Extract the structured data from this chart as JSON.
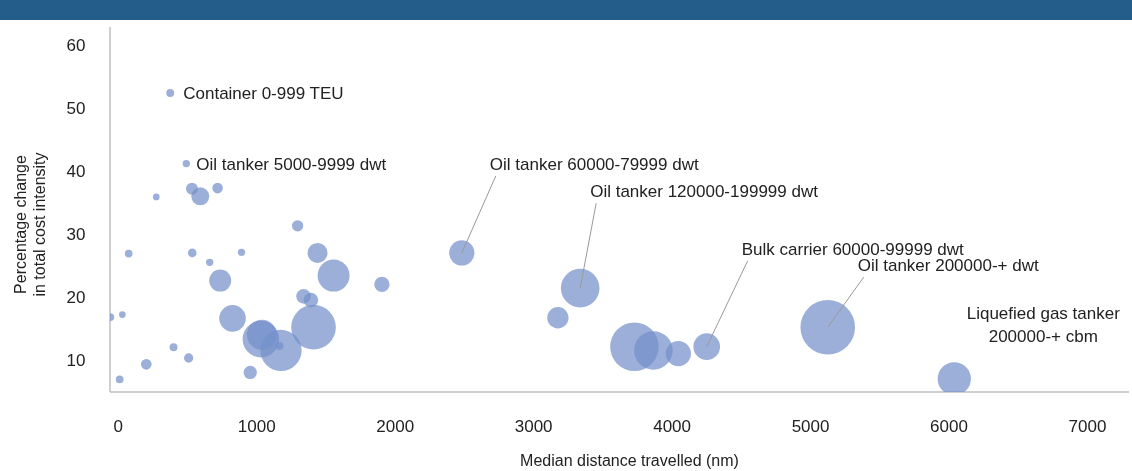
{
  "chart_data": {
    "type": "bubble",
    "xlabel": "Median distance travelled (nm)",
    "ylabel": "Percentage change\nin total cost intensity",
    "xlim": [
      -60,
      7300
    ],
    "xticks": [
      0,
      1000,
      2000,
      3000,
      4000,
      5000,
      6000,
      7000
    ],
    "ylim": [
      5,
      63
    ],
    "yticks": [
      10,
      20,
      30,
      40,
      50,
      60
    ],
    "grid": false,
    "marker": "circle",
    "series": [
      {
        "color": "#7590cb",
        "x": [
          375,
          491,
          274,
          532,
          592,
          717,
          1295,
          75,
          534,
          890,
          660,
          1439,
          736,
          1555,
          1904,
          1338,
          1391,
          -58,
          29,
          825,
          1410,
          1030,
          1037,
          1175,
          1165,
          399,
          508,
          202,
          10,
          953,
          2481,
          3336,
          3175,
          3728,
          3865,
          4045,
          4250,
          5124,
          6038
        ],
        "values": [
          52.5,
          41.3,
          36.0,
          37.3,
          36.1,
          37.4,
          31.4,
          27.0,
          27.1,
          27.2,
          25.6,
          27.1,
          22.7,
          23.5,
          22.1,
          20.2,
          19.6,
          16.9,
          17.3,
          16.7,
          15.3,
          13.4,
          14.1,
          11.6,
          12.3,
          12.1,
          10.4,
          9.4,
          7.0,
          8.1,
          27.1,
          21.5,
          16.8,
          12.2,
          11.6,
          11.1,
          12.2,
          15.3,
          7.1
        ],
        "sizes": [
          0.021,
          0.018,
          0.015,
          0.048,
          0.108,
          0.038,
          0.043,
          0.02,
          0.025,
          0.018,
          0.018,
          0.134,
          0.162,
          0.343,
          0.079,
          0.072,
          0.072,
          0.021,
          0.015,
          0.238,
          0.668,
          0.45,
          0.301,
          0.572,
          0.021,
          0.021,
          0.029,
          0.038,
          0.02,
          0.059,
          0.215,
          0.5,
          0.152,
          0.793,
          0.5,
          0.215,
          0.238,
          1,
          0.372
        ]
      }
    ],
    "annotations": [
      {
        "text": "Container 0-999 TEU",
        "x": 375,
        "y": 52.5
      },
      {
        "text": "Oil tanker 5000-9999 dwt",
        "x": 491,
        "y": 41.3
      },
      {
        "text": "Oil tanker 60000-79999 dwt",
        "x": 2481,
        "y": 27.1
      },
      {
        "text": "Oil tanker 120000-199999 dwt",
        "x": 3336,
        "y": 21.5
      },
      {
        "text": "Bulk carrier 60000-99999 dwt",
        "x": 4250,
        "y": 12.2
      },
      {
        "text": "Oil tanker 200000-+ dwt",
        "x": 5124,
        "y": 15.3
      },
      {
        "text": "Liquefied gas tanker\n200000-+ cbm",
        "x": 6038,
        "y": 7.1
      }
    ]
  }
}
